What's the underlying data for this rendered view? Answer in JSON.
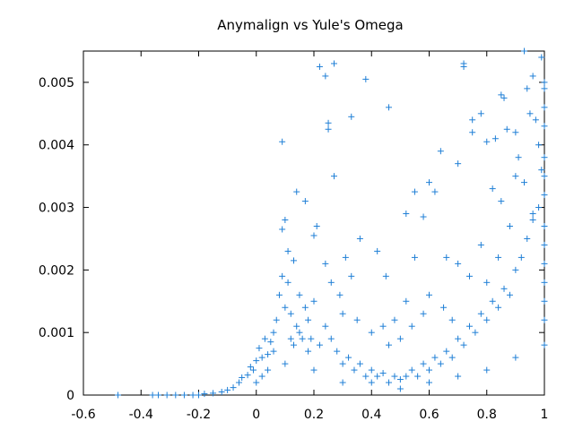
{
  "chart_data": {
    "type": "scatter",
    "title": "Anymalign vs Yule's Omega",
    "xlabel": "",
    "ylabel": "",
    "xlim": [
      -0.6,
      1.0
    ],
    "ylim": [
      0,
      0.0055
    ],
    "x_ticks": [
      -0.6,
      -0.4,
      -0.2,
      0,
      0.2,
      0.4,
      0.6,
      0.8,
      1
    ],
    "x_tick_labels": [
      "-0.6",
      "-0.4",
      "-0.2",
      "0",
      "0.2",
      "0.4",
      "0.6",
      "0.8",
      "1"
    ],
    "y_ticks": [
      0,
      0.001,
      0.002,
      0.003,
      0.004,
      0.005
    ],
    "y_tick_labels": [
      "0",
      "0.001",
      "0.002",
      "0.003",
      "0.004",
      "0.005"
    ],
    "grid": false,
    "legend": "none",
    "marker": "plus",
    "color": "#1f7fd6",
    "series": [
      {
        "points": [
          [
            -0.48,
            0.0
          ],
          [
            -0.36,
            0.0
          ],
          [
            -0.34,
            0.0
          ],
          [
            -0.31,
            0.0
          ],
          [
            -0.28,
            0.0
          ],
          [
            -0.25,
            0.0
          ],
          [
            -0.22,
            0.0
          ],
          [
            -0.2,
            0.0
          ],
          [
            -0.18,
            2e-05
          ],
          [
            -0.15,
            3e-05
          ],
          [
            -0.12,
            5e-05
          ],
          [
            -0.1,
            8e-05
          ],
          [
            -0.08,
            0.00012
          ],
          [
            -0.06,
            0.0002
          ],
          [
            -0.05,
            0.00028
          ],
          [
            -0.03,
            0.00032
          ],
          [
            -0.02,
            0.00045
          ],
          [
            -0.01,
            0.0004
          ],
          [
            0.0,
            0.00055
          ],
          [
            0.01,
            0.00075
          ],
          [
            0.02,
            0.0006
          ],
          [
            0.03,
            0.0009
          ],
          [
            0.04,
            0.00065
          ],
          [
            0.05,
            0.00085
          ],
          [
            0.06,
            0.001
          ],
          [
            0.07,
            0.0012
          ],
          [
            0.08,
            0.0016
          ],
          [
            0.09,
            0.0019
          ],
          [
            0.1,
            0.0014
          ],
          [
            0.11,
            0.0018
          ],
          [
            0.12,
            0.0013
          ],
          [
            0.13,
            0.00215
          ],
          [
            0.14,
            0.0011
          ],
          [
            0.15,
            0.0016
          ],
          [
            0.16,
            0.0009
          ],
          [
            0.17,
            0.0014
          ],
          [
            0.18,
            0.0012
          ],
          [
            0.19,
            0.0009
          ],
          [
            0.2,
            0.0015
          ],
          [
            0.22,
            0.0008
          ],
          [
            0.24,
            0.0011
          ],
          [
            0.26,
            0.0009
          ],
          [
            0.28,
            0.0007
          ],
          [
            0.3,
            0.0005
          ],
          [
            0.32,
            0.0006
          ],
          [
            0.34,
            0.0004
          ],
          [
            0.36,
            0.0005
          ],
          [
            0.38,
            0.0003
          ],
          [
            0.4,
            0.0004
          ],
          [
            0.42,
            0.0003
          ],
          [
            0.44,
            0.00035
          ],
          [
            0.46,
            0.0002
          ],
          [
            0.48,
            0.0003
          ],
          [
            0.5,
            0.00025
          ],
          [
            0.52,
            0.0003
          ],
          [
            0.54,
            0.0004
          ],
          [
            0.56,
            0.0003
          ],
          [
            0.58,
            0.0005
          ],
          [
            0.6,
            0.0004
          ],
          [
            0.62,
            0.0006
          ],
          [
            0.64,
            0.0005
          ],
          [
            0.66,
            0.0007
          ],
          [
            0.68,
            0.0006
          ],
          [
            0.7,
            0.0009
          ],
          [
            0.72,
            0.0008
          ],
          [
            0.74,
            0.0011
          ],
          [
            0.76,
            0.001
          ],
          [
            0.78,
            0.0013
          ],
          [
            0.8,
            0.0012
          ],
          [
            0.82,
            0.0015
          ],
          [
            0.84,
            0.0014
          ],
          [
            0.86,
            0.0017
          ],
          [
            0.88,
            0.0016
          ],
          [
            0.9,
            0.002
          ],
          [
            0.92,
            0.0022
          ],
          [
            0.94,
            0.0025
          ],
          [
            0.96,
            0.0028
          ],
          [
            0.98,
            0.003
          ],
          [
            1.0,
            0.0032
          ],
          [
            0.09,
            0.00405
          ],
          [
            0.1,
            0.0028
          ],
          [
            0.09,
            0.00265
          ],
          [
            0.11,
            0.0023
          ],
          [
            0.14,
            0.00325
          ],
          [
            0.17,
            0.0031
          ],
          [
            0.2,
            0.00255
          ],
          [
            0.21,
            0.0027
          ],
          [
            0.22,
            0.00525
          ],
          [
            0.24,
            0.0051
          ],
          [
            0.27,
            0.0053
          ],
          [
            0.25,
            0.00435
          ],
          [
            0.25,
            0.00425
          ],
          [
            0.27,
            0.0035
          ],
          [
            0.33,
            0.00445
          ],
          [
            0.38,
            0.00505
          ],
          [
            0.46,
            0.0046
          ],
          [
            0.36,
            0.0025
          ],
          [
            0.42,
            0.0023
          ],
          [
            0.45,
            0.0019
          ],
          [
            0.52,
            0.0029
          ],
          [
            0.55,
            0.00325
          ],
          [
            0.58,
            0.00285
          ],
          [
            0.6,
            0.0034
          ],
          [
            0.62,
            0.00325
          ],
          [
            0.64,
            0.0039
          ],
          [
            0.7,
            0.0037
          ],
          [
            0.72,
            0.0053
          ],
          [
            0.72,
            0.00525
          ],
          [
            0.75,
            0.0044
          ],
          [
            0.75,
            0.0042
          ],
          [
            0.78,
            0.0045
          ],
          [
            0.8,
            0.00405
          ],
          [
            0.83,
            0.0041
          ],
          [
            0.85,
            0.0048
          ],
          [
            0.86,
            0.00475
          ],
          [
            0.87,
            0.00425
          ],
          [
            0.9,
            0.0042
          ],
          [
            0.91,
            0.0038
          ],
          [
            0.93,
            0.0055
          ],
          [
            0.94,
            0.0049
          ],
          [
            0.95,
            0.0045
          ],
          [
            0.96,
            0.0051
          ],
          [
            0.97,
            0.0044
          ],
          [
            0.98,
            0.004
          ],
          [
            0.99,
            0.0054
          ],
          [
            1.0,
            0.0046
          ],
          [
            1.0,
            0.0043
          ],
          [
            0.82,
            0.0033
          ],
          [
            0.85,
            0.0031
          ],
          [
            0.88,
            0.0027
          ],
          [
            0.9,
            0.0035
          ],
          [
            0.93,
            0.0034
          ],
          [
            0.96,
            0.0029
          ],
          [
            0.99,
            0.0036
          ],
          [
            0.66,
            0.0022
          ],
          [
            0.7,
            0.0021
          ],
          [
            0.74,
            0.0019
          ],
          [
            0.78,
            0.0024
          ],
          [
            0.8,
            0.0018
          ],
          [
            0.84,
            0.0022
          ],
          [
            0.55,
            0.0022
          ],
          [
            0.52,
            0.0015
          ],
          [
            0.48,
            0.0012
          ],
          [
            0.5,
            0.0009
          ],
          [
            0.54,
            0.0011
          ],
          [
            0.58,
            0.0013
          ],
          [
            0.6,
            0.0016
          ],
          [
            0.65,
            0.0014
          ],
          [
            0.68,
            0.0012
          ],
          [
            0.31,
            0.0022
          ],
          [
            0.33,
            0.0019
          ],
          [
            0.29,
            0.0016
          ],
          [
            0.26,
            0.0018
          ],
          [
            0.24,
            0.0021
          ],
          [
            0.3,
            0.0013
          ],
          [
            0.35,
            0.0012
          ],
          [
            0.4,
            0.001
          ],
          [
            0.44,
            0.0011
          ],
          [
            0.46,
            0.0008
          ],
          [
            0.12,
            0.0009
          ],
          [
            0.13,
            0.0008
          ],
          [
            0.15,
            0.001
          ],
          [
            0.18,
            0.0007
          ],
          [
            0.06,
            0.0007
          ],
          [
            0.04,
            0.0004
          ],
          [
            0.02,
            0.0003
          ],
          [
            0.0,
            0.0002
          ],
          [
            0.1,
            0.0005
          ],
          [
            0.2,
            0.0004
          ],
          [
            0.3,
            0.0002
          ],
          [
            0.4,
            0.0002
          ],
          [
            0.5,
            0.0001
          ],
          [
            0.6,
            0.0002
          ],
          [
            0.7,
            0.0003
          ],
          [
            0.8,
            0.0004
          ],
          [
            0.9,
            0.0006
          ],
          [
            1.0,
            0.0008
          ],
          [
            1.0,
            0.0012
          ],
          [
            1.0,
            0.0015
          ],
          [
            1.0,
            0.0018
          ],
          [
            1.0,
            0.0021
          ],
          [
            1.0,
            0.0024
          ],
          [
            1.0,
            0.0027
          ],
          [
            1.0,
            0.0035
          ],
          [
            1.0,
            0.0038
          ],
          [
            1.0,
            0.0049
          ],
          [
            1.0,
            0.005
          ]
        ]
      }
    ]
  }
}
